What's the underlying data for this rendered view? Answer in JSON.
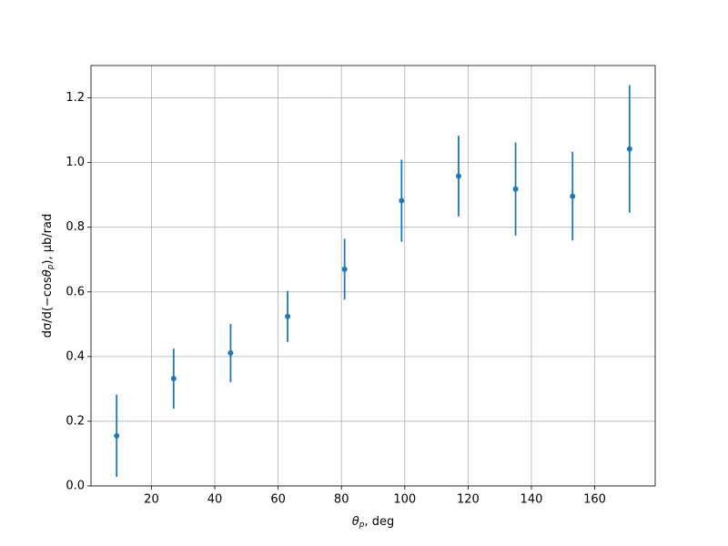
{
  "chart_data": {
    "type": "errorbar",
    "xlabel": {
      "symbol": "θ",
      "subscript": "p",
      "text": ", deg"
    },
    "ylabel": {
      "prefix": "dσ/d(−cos",
      "symbol": "θ",
      "subscript": "p",
      "text": "), μb/rad"
    },
    "x": [
      9,
      27,
      45,
      63,
      81,
      99,
      117,
      135,
      153,
      171
    ],
    "series": [
      {
        "color": "#1f77b4",
        "values": [
          0.155,
          0.332,
          0.411,
          0.524,
          0.67,
          0.882,
          0.958,
          0.918,
          0.896,
          1.042
        ],
        "errors": [
          0.127,
          0.093,
          0.09,
          0.079,
          0.094,
          0.127,
          0.125,
          0.144,
          0.137,
          0.197
        ]
      }
    ],
    "xlim": [
      0.9,
      179.1
    ],
    "ylim": [
      0,
      1.3
    ],
    "xticks": [
      20,
      40,
      60,
      80,
      100,
      120,
      140,
      160
    ],
    "yticks": [
      {
        "value": 0,
        "label": "0.0"
      },
      {
        "value": 0.2,
        "label": "0.2"
      },
      {
        "value": 0.4,
        "label": "0.4"
      },
      {
        "value": 0.6,
        "label": "0.6"
      },
      {
        "value": 0.8,
        "label": "0.8"
      },
      {
        "value": 1.0,
        "label": "1.0"
      },
      {
        "value": 1.2,
        "label": "1.2"
      }
    ],
    "grid": true
  }
}
